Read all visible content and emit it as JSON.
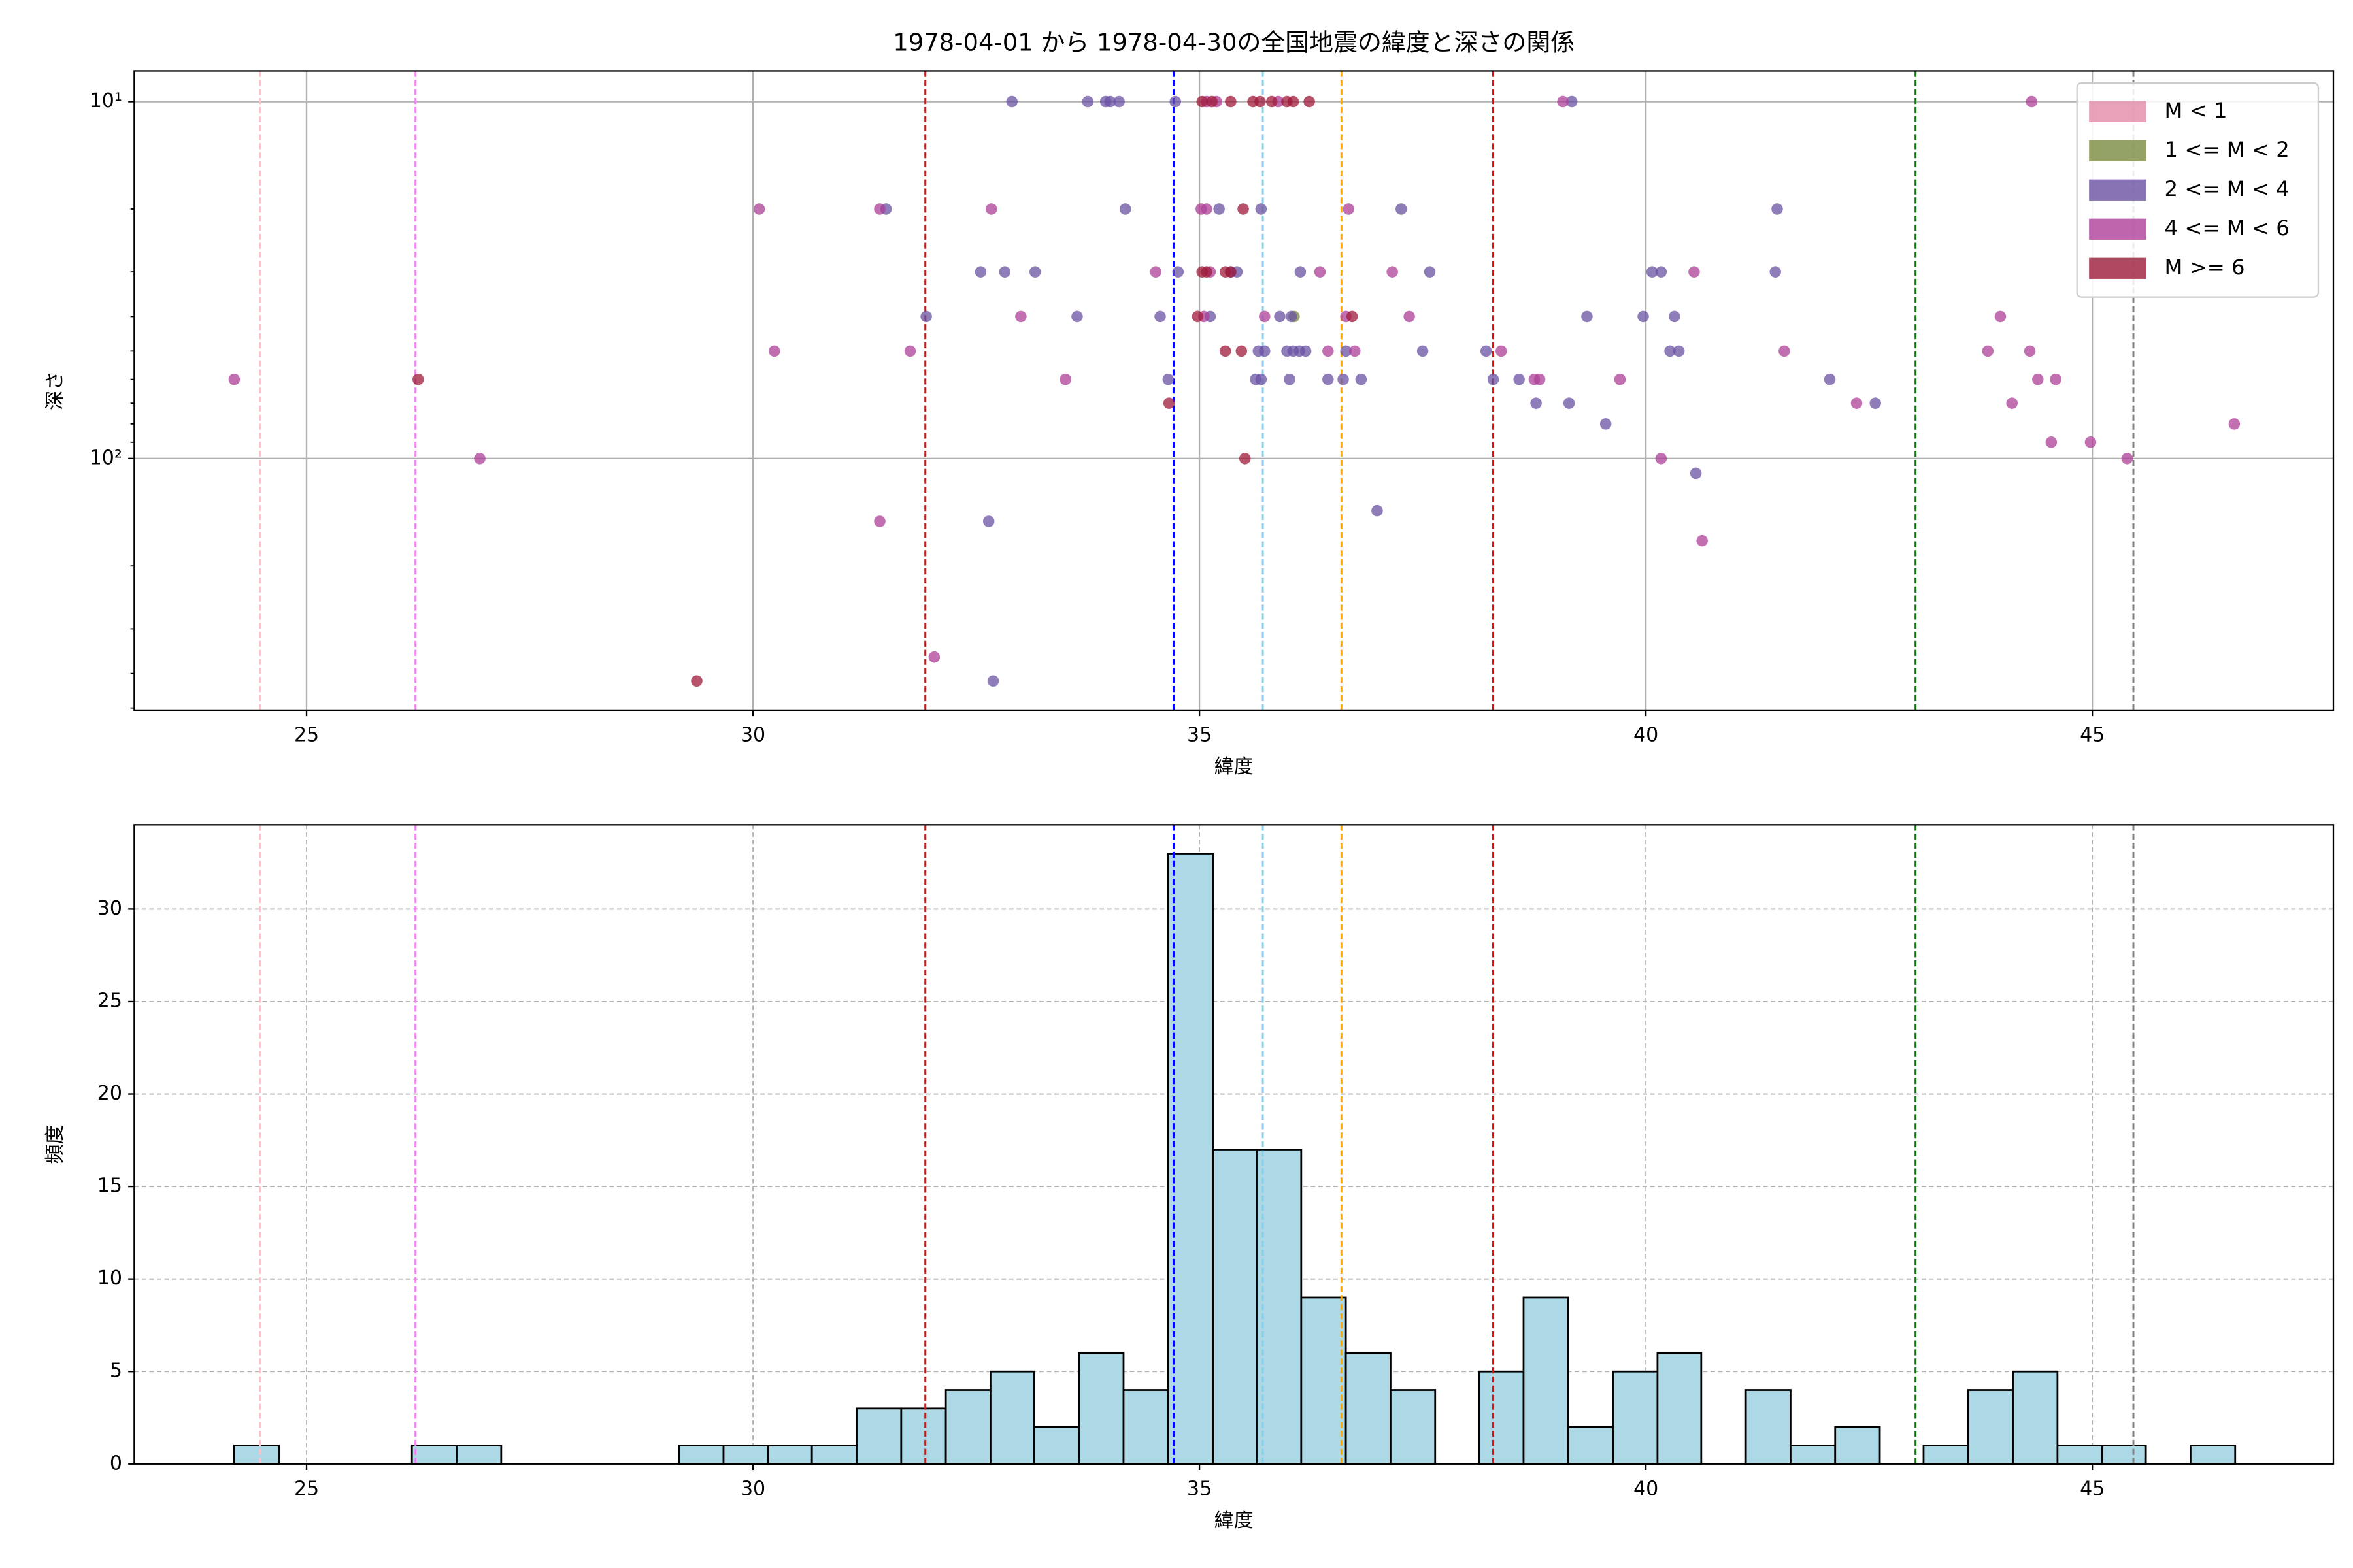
{
  "chart_data": [
    {
      "type": "scatter",
      "title": "1978-04-01 から 1978-04-30の全国地震の緯度と深さの関係",
      "xlabel": "緯度",
      "ylabel": "深さ",
      "xlim": [
        23.07,
        47.7
      ],
      "xticks": [
        25,
        30,
        35,
        40,
        45
      ],
      "ylim": [
        8.2,
        507
      ],
      "yscale": "log",
      "yinverted": true,
      "yticks": [
        {
          "value": 10,
          "label": "10¹"
        },
        {
          "value": 100,
          "label": "10²"
        }
      ],
      "yminorticks": [
        20,
        30,
        40,
        50,
        60,
        70,
        80,
        90,
        200,
        300,
        400,
        500
      ],
      "grid": true,
      "legend": "upper right",
      "series": [
        {
          "name": "M < 1",
          "color": "#e48aa8",
          "x": [],
          "values": []
        },
        {
          "name": "1 <= M < 2",
          "color": "#7a8b3f",
          "x": [
            36.06
          ],
          "values": [
            40
          ]
        },
        {
          "name": "2 <= M < 4",
          "color": "#6a51a3",
          "x": [
            32.9,
            33.75,
            33.95,
            34.0,
            34.1,
            34.73,
            39.17,
            31.49,
            34.17,
            35.22,
            35.69,
            37.26,
            41.47,
            32.55,
            32.82,
            33.16,
            34.76,
            35.35,
            35.42,
            36.13,
            37.58,
            40.07,
            40.17,
            41.45,
            31.94,
            33.63,
            34.56,
            35.12,
            35.9,
            36.03,
            39.34,
            39.97,
            40.32,
            35.66,
            35.73,
            35.98,
            36.05,
            36.12,
            36.19,
            36.64,
            37.5,
            38.21,
            40.27,
            40.37,
            34.65,
            35.63,
            35.69,
            36.01,
            36.44,
            36.61,
            36.81,
            38.29,
            38.58,
            42.06,
            38.77,
            39.14,
            42.57,
            39.55,
            40.56,
            36.99,
            32.64,
            32.69
          ],
          "values": [
            10,
            10,
            10,
            10,
            10,
            10,
            10,
            20,
            20,
            20,
            20,
            20,
            20,
            30,
            30,
            30,
            30,
            30,
            30,
            30,
            30,
            30,
            30,
            30,
            40,
            40,
            40,
            40,
            40,
            40,
            40,
            40,
            40,
            50,
            50,
            50,
            50,
            50,
            50,
            50,
            50,
            50,
            50,
            50,
            60,
            60,
            60,
            60,
            60,
            60,
            60,
            60,
            60,
            60,
            70,
            70,
            70,
            80,
            110,
            140,
            150,
            420
          ]
        },
        {
          "name": "4 <= M < 6",
          "color": "#ae3f98",
          "x": [
            35.08,
            35.19,
            35.88,
            39.07,
            44.32,
            30.07,
            31.42,
            32.67,
            35.02,
            35.08,
            36.67,
            34.51,
            35.12,
            36.35,
            37.16,
            40.54,
            33.0,
            35.05,
            35.73,
            36.64,
            37.35,
            43.97,
            30.24,
            31.76,
            36.44,
            36.74,
            38.38,
            41.55,
            43.83,
            44.3,
            24.19,
            33.5,
            38.75,
            38.81,
            39.71,
            44.39,
            44.59,
            42.36,
            44.1,
            46.59,
            44.54,
            44.98,
            26.94,
            40.17,
            45.39,
            31.42,
            40.63,
            32.03
          ],
          "values": [
            10,
            10,
            10,
            10,
            10,
            20,
            20,
            20,
            20,
            20,
            20,
            30,
            30,
            30,
            30,
            30,
            40,
            40,
            40,
            40,
            40,
            40,
            50,
            50,
            50,
            50,
            50,
            50,
            50,
            50,
            60,
            60,
            60,
            60,
            60,
            60,
            60,
            70,
            70,
            80,
            90,
            90,
            100,
            100,
            100,
            150,
            170,
            360
          ]
        },
        {
          "name": "M >= 6",
          "color": "#9e1a3a",
          "x": [
            35.03,
            35.14,
            35.35,
            35.6,
            35.68,
            35.81,
            35.98,
            36.05,
            36.23,
            35.49,
            35.03,
            35.08,
            35.29,
            35.35,
            34.98,
            36.71,
            35.29,
            35.47,
            26.25,
            34.66,
            35.51,
            29.37
          ],
          "values": [
            10,
            10,
            10,
            10,
            10,
            10,
            10,
            10,
            10,
            20,
            30,
            30,
            30,
            30,
            40,
            40,
            50,
            50,
            60,
            70,
            100,
            420
          ]
        }
      ],
      "vlines": [
        {
          "x": 24.48,
          "color": "pink"
        },
        {
          "x": 26.22,
          "color": "violet"
        },
        {
          "x": 31.93,
          "color": "#b22222"
        },
        {
          "x": 34.71,
          "color": "blue"
        },
        {
          "x": 35.71,
          "color": "skyblue"
        },
        {
          "x": 36.59,
          "color": "orange"
        },
        {
          "x": 38.29,
          "color": "red"
        },
        {
          "x": 43.02,
          "color": "green"
        },
        {
          "x": 45.46,
          "color": "gray"
        }
      ]
    },
    {
      "type": "histogram",
      "xlabel": "緯度",
      "ylabel": "頻度",
      "xlim": [
        23.07,
        47.7
      ],
      "xticks": [
        25,
        30,
        35,
        40,
        45
      ],
      "ylim": [
        0,
        34.56
      ],
      "yticks": [
        0,
        5,
        10,
        15,
        20,
        25,
        30
      ],
      "grid": true,
      "color": "#add8e6",
      "edgecolor": "#000000",
      "bins": [
        24.19,
        24.69,
        25.19,
        25.68,
        26.18,
        26.68,
        27.18,
        27.68,
        28.17,
        28.67,
        29.17,
        29.67,
        30.17,
        30.66,
        31.16,
        31.66,
        32.16,
        32.66,
        33.15,
        33.65,
        34.15,
        34.65,
        35.15,
        35.64,
        36.14,
        36.64,
        37.14,
        37.64,
        38.13,
        38.63,
        39.13,
        39.63,
        40.13,
        40.62,
        41.12,
        41.62,
        42.12,
        42.62,
        43.11,
        43.61,
        44.11,
        44.61,
        45.11,
        45.6,
        46.1,
        46.6
      ],
      "counts": [
        1,
        0,
        0,
        0,
        1,
        1,
        0,
        0,
        0,
        0,
        1,
        1,
        1,
        1,
        3,
        3,
        4,
        5,
        2,
        6,
        4,
        33,
        17,
        17,
        9,
        6,
        4,
        0,
        5,
        9,
        2,
        5,
        6,
        0,
        4,
        1,
        2,
        0,
        1,
        4,
        5,
        1,
        1,
        0,
        1
      ],
      "vlines": [
        {
          "x": 24.48,
          "color": "pink"
        },
        {
          "x": 26.22,
          "color": "violet"
        },
        {
          "x": 31.93,
          "color": "#b22222"
        },
        {
          "x": 34.71,
          "color": "blue"
        },
        {
          "x": 35.71,
          "color": "skyblue"
        },
        {
          "x": 36.59,
          "color": "orange"
        },
        {
          "x": 38.29,
          "color": "red"
        },
        {
          "x": 43.02,
          "color": "green"
        },
        {
          "x": 45.46,
          "color": "gray"
        }
      ]
    }
  ]
}
